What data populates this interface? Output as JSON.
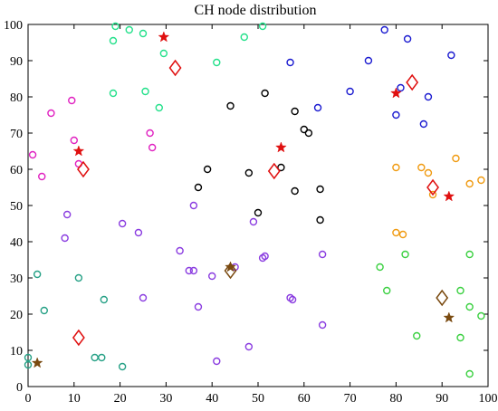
{
  "chart_data": {
    "type": "scatter",
    "title": "CH node distribution",
    "xlabel": "",
    "ylabel": "",
    "xlim": [
      0,
      100
    ],
    "ylim": [
      0,
      100
    ],
    "x_ticks": [
      0,
      10,
      20,
      30,
      40,
      50,
      60,
      70,
      80,
      90,
      100
    ],
    "y_ticks": [
      0,
      10,
      20,
      30,
      40,
      50,
      60,
      70,
      80,
      90,
      100
    ],
    "grid": false,
    "legend": "none",
    "series": [
      {
        "marker": "circle",
        "color": "#22e08a",
        "points": [
          [
            19,
            99.5
          ],
          [
            22,
            98.5
          ],
          [
            25,
            97.5
          ],
          [
            18.5,
            95.5
          ],
          [
            29.5,
            92
          ],
          [
            41,
            89.5
          ],
          [
            47,
            96.5
          ],
          [
            51,
            99.5
          ],
          [
            18.5,
            81
          ],
          [
            25.5,
            81.5
          ],
          [
            28.5,
            77
          ]
        ]
      },
      {
        "marker": "circle",
        "color": "#1a1ad0",
        "points": [
          [
            77.5,
            98.5
          ],
          [
            82.5,
            96
          ],
          [
            92,
            91.5
          ],
          [
            74,
            90
          ],
          [
            57,
            89.5
          ],
          [
            81,
            82.5
          ],
          [
            70,
            81.5
          ],
          [
            87,
            80
          ],
          [
            80,
            75
          ],
          [
            86,
            72.5
          ],
          [
            63,
            77
          ]
        ]
      },
      {
        "marker": "circle",
        "color": "#e020c0",
        "points": [
          [
            1,
            64
          ],
          [
            3,
            58
          ],
          [
            5,
            75.5
          ],
          [
            9.5,
            79
          ],
          [
            10,
            68
          ],
          [
            11,
            61.5
          ],
          [
            26.5,
            70
          ],
          [
            27,
            66
          ]
        ]
      },
      {
        "marker": "circle",
        "color": "#000000",
        "points": [
          [
            44,
            77.5
          ],
          [
            51.5,
            81
          ],
          [
            58,
            76
          ],
          [
            60,
            71
          ],
          [
            61,
            70
          ],
          [
            39,
            60
          ],
          [
            48,
            59
          ],
          [
            55,
            60.5
          ],
          [
            37,
            55
          ],
          [
            58,
            54
          ],
          [
            63.5,
            54.5
          ],
          [
            50,
            48
          ],
          [
            63.5,
            46
          ]
        ]
      },
      {
        "marker": "circle",
        "color": "#f09a10",
        "points": [
          [
            80,
            60.5
          ],
          [
            85.5,
            60.5
          ],
          [
            87,
            59
          ],
          [
            93,
            63
          ],
          [
            96,
            56
          ],
          [
            98.5,
            57
          ],
          [
            88,
            53
          ],
          [
            80,
            42.5
          ],
          [
            81.5,
            42
          ]
        ]
      },
      {
        "marker": "circle",
        "color": "#8a3ce0",
        "points": [
          [
            8.5,
            47.5
          ],
          [
            8,
            41
          ],
          [
            20.5,
            45
          ],
          [
            24,
            42.5
          ],
          [
            36,
            50
          ],
          [
            49,
            45.5
          ],
          [
            33,
            37.5
          ],
          [
            35,
            32
          ],
          [
            36,
            32
          ],
          [
            40,
            30.5
          ],
          [
            45,
            33
          ],
          [
            51,
            35.5
          ],
          [
            51.5,
            36
          ],
          [
            64,
            36.5
          ],
          [
            25,
            24.5
          ],
          [
            37,
            22
          ],
          [
            57,
            24.5
          ],
          [
            57.5,
            24
          ],
          [
            64,
            17
          ],
          [
            41,
            7
          ],
          [
            48,
            11
          ]
        ]
      },
      {
        "marker": "circle",
        "color": "#25a085",
        "points": [
          [
            2,
            31
          ],
          [
            11,
            30
          ],
          [
            3.5,
            21
          ],
          [
            16.5,
            24
          ],
          [
            14.5,
            8
          ],
          [
            16,
            8
          ],
          [
            20.5,
            5.5
          ],
          [
            0,
            8
          ],
          [
            0,
            6
          ]
        ]
      },
      {
        "marker": "circle",
        "color": "#3ad040",
        "points": [
          [
            76.5,
            33
          ],
          [
            82,
            36.5
          ],
          [
            96,
            36.5
          ],
          [
            78,
            26.5
          ],
          [
            94,
            26.5
          ],
          [
            96,
            22
          ],
          [
            98.5,
            19.5
          ],
          [
            84.5,
            14
          ],
          [
            94,
            13.5
          ],
          [
            96,
            3.5
          ]
        ]
      },
      {
        "marker": "star",
        "color": "#e01010",
        "points": [
          [
            29.5,
            96.5
          ],
          [
            80,
            81
          ],
          [
            11,
            65
          ],
          [
            55,
            66
          ],
          [
            91.5,
            52.5
          ]
        ]
      },
      {
        "marker": "star",
        "color": "#7a4a10",
        "points": [
          [
            2,
            6.5
          ],
          [
            44,
            33
          ],
          [
            91.5,
            19
          ]
        ]
      },
      {
        "marker": "diamond",
        "color": "#e01010",
        "points": [
          [
            32,
            88
          ],
          [
            83.5,
            84
          ],
          [
            12,
            60
          ],
          [
            53.5,
            59.5
          ],
          [
            88,
            55
          ],
          [
            11,
            13.5
          ]
        ]
      },
      {
        "marker": "diamond",
        "color": "#7a4a10",
        "points": [
          [
            44,
            32
          ],
          [
            90,
            24.5
          ]
        ]
      }
    ]
  }
}
